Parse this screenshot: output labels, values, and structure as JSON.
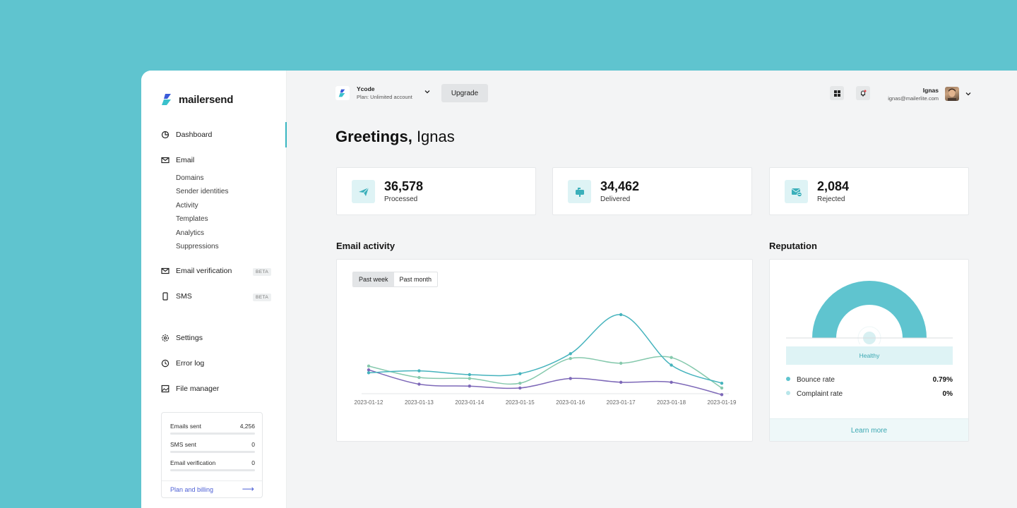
{
  "brand": {
    "name": "mailersend",
    "accent": "#38b6c1",
    "link": "#4c5fd5"
  },
  "sidebar": {
    "nav": [
      {
        "label": "Dashboard",
        "icon": "dashboard-icon"
      },
      {
        "label": "Email",
        "icon": "mail-icon"
      },
      {
        "label": "Email verification",
        "icon": "mail-check-icon",
        "badge": "BETA"
      },
      {
        "label": "SMS",
        "icon": "phone-icon",
        "badge": "BETA"
      },
      {
        "label": "Settings",
        "icon": "gear-icon"
      },
      {
        "label": "Error log",
        "icon": "clock-icon"
      },
      {
        "label": "File manager",
        "icon": "image-icon"
      }
    ],
    "email_sub": [
      "Domains",
      "Sender identities",
      "Activity",
      "Templates",
      "Analytics",
      "Suppressions"
    ],
    "usage": [
      {
        "label": "Emails sent",
        "value": "4,256"
      },
      {
        "label": "SMS sent",
        "value": "0"
      },
      {
        "label": "Email verification",
        "value": "0"
      }
    ],
    "plan_link": "Plan and billing"
  },
  "header": {
    "account_name": "Ycode",
    "account_plan": "Plan: Unlimited account",
    "upgrade_label": "Upgrade",
    "user_name": "Ignas",
    "user_email": "ignas@mailerlite.com"
  },
  "greeting": {
    "prefix": "Greetings,",
    "name": "Ignas"
  },
  "stats": [
    {
      "value": "36,578",
      "label": "Processed",
      "icon": "paper-plane-icon"
    },
    {
      "value": "34,462",
      "label": "Delivered",
      "icon": "mailbox-icon"
    },
    {
      "value": "2,084",
      "label": "Rejected",
      "icon": "mail-rejected-icon"
    }
  ],
  "activity": {
    "title": "Email activity",
    "tabs": [
      "Past week",
      "Past month"
    ],
    "active_tab": "Past week"
  },
  "chart_data": {
    "type": "line",
    "title": "Email activity",
    "x": [
      "2023-01-12",
      "2023-01-13",
      "2023-01-14",
      "2023-01-15",
      "2023-01-16",
      "2023-01-17",
      "2023-01-18",
      "2023-01-19"
    ],
    "ylim": [
      0,
      10
    ],
    "grid": false,
    "series": [
      {
        "name": "Processed",
        "color": "#45b3bd",
        "values": [
          2.2,
          2.4,
          2.0,
          2.1,
          4.2,
          8.3,
          3.0,
          1.1
        ]
      },
      {
        "name": "Delivered",
        "color": "#86c9ad",
        "values": [
          2.9,
          1.7,
          1.6,
          1.1,
          3.7,
          3.2,
          3.8,
          0.6
        ]
      },
      {
        "name": "Rejected",
        "color": "#7d68b8",
        "values": [
          2.5,
          1.0,
          0.8,
          0.6,
          1.6,
          1.2,
          1.2,
          -0.1
        ]
      }
    ]
  },
  "reputation": {
    "title": "Reputation",
    "status": "Healthy",
    "gauge_fraction": 1.0,
    "rows": [
      {
        "label": "Bounce rate",
        "value": "0.79%",
        "color": "#5fc4cf"
      },
      {
        "label": "Complaint rate",
        "value": "0%",
        "color": "#b8e6ea"
      }
    ],
    "learn_more": "Learn more"
  }
}
